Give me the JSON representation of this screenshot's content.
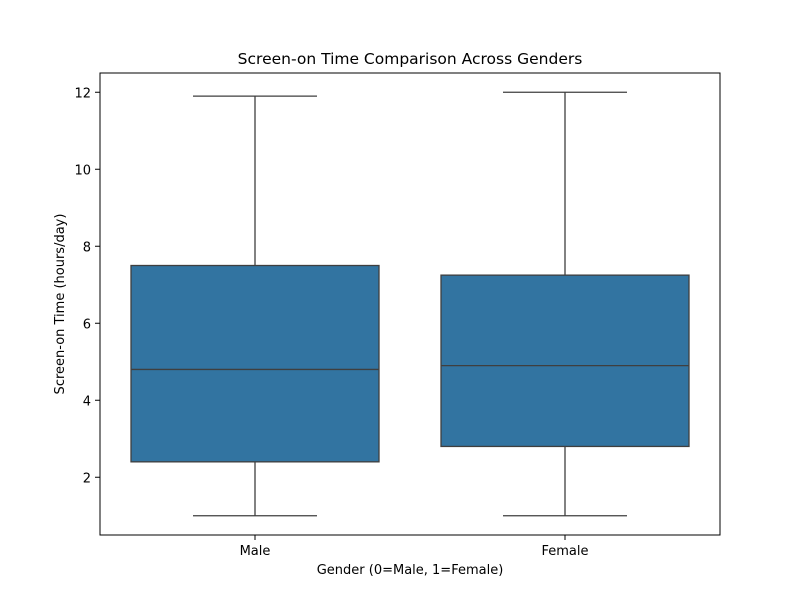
{
  "chart_data": {
    "type": "box",
    "title": "Screen-on Time Comparison Across Genders",
    "xlabel": "Gender (0=Male, 1=Female)",
    "ylabel": "Screen-on Time (hours/day)",
    "ylim": [
      0.5,
      12.5
    ],
    "yticks": [
      2,
      4,
      6,
      8,
      10,
      12
    ],
    "categories": [
      "Male",
      "Female"
    ],
    "boxes": [
      {
        "category": "Male",
        "whisker_low": 1.0,
        "q1": 2.4,
        "median": 4.8,
        "q3": 7.5,
        "whisker_high": 11.9
      },
      {
        "category": "Female",
        "whisker_low": 1.0,
        "q1": 2.8,
        "median": 4.9,
        "q3": 7.25,
        "whisker_high": 12.0
      }
    ],
    "box_color": "#3274a1",
    "line_color": "#3f3f3f",
    "grid": false,
    "legend": "none"
  }
}
